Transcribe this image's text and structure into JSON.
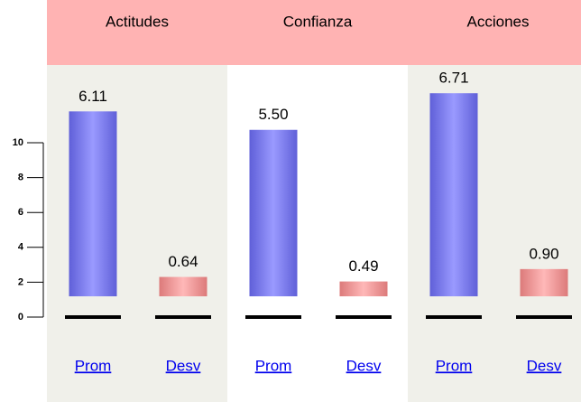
{
  "chart_data": {
    "type": "bar",
    "categories": [
      "Actitudes",
      "Confianza",
      "Acciones"
    ],
    "series": [
      {
        "name": "Prom",
        "color": "#7b7bf5",
        "values": [
          6.11,
          5.5,
          6.71
        ],
        "value_labels": [
          "6.11",
          "5.50",
          "6.71"
        ]
      },
      {
        "name": "Desv",
        "color": "#f09a9a",
        "values": [
          0.64,
          0.49,
          0.9
        ],
        "value_labels": [
          "0.64",
          "0.49",
          "0.90"
        ]
      }
    ],
    "ylim": [
      0,
      10
    ],
    "yticks": [
      0,
      2,
      4,
      6,
      8,
      10
    ]
  }
}
